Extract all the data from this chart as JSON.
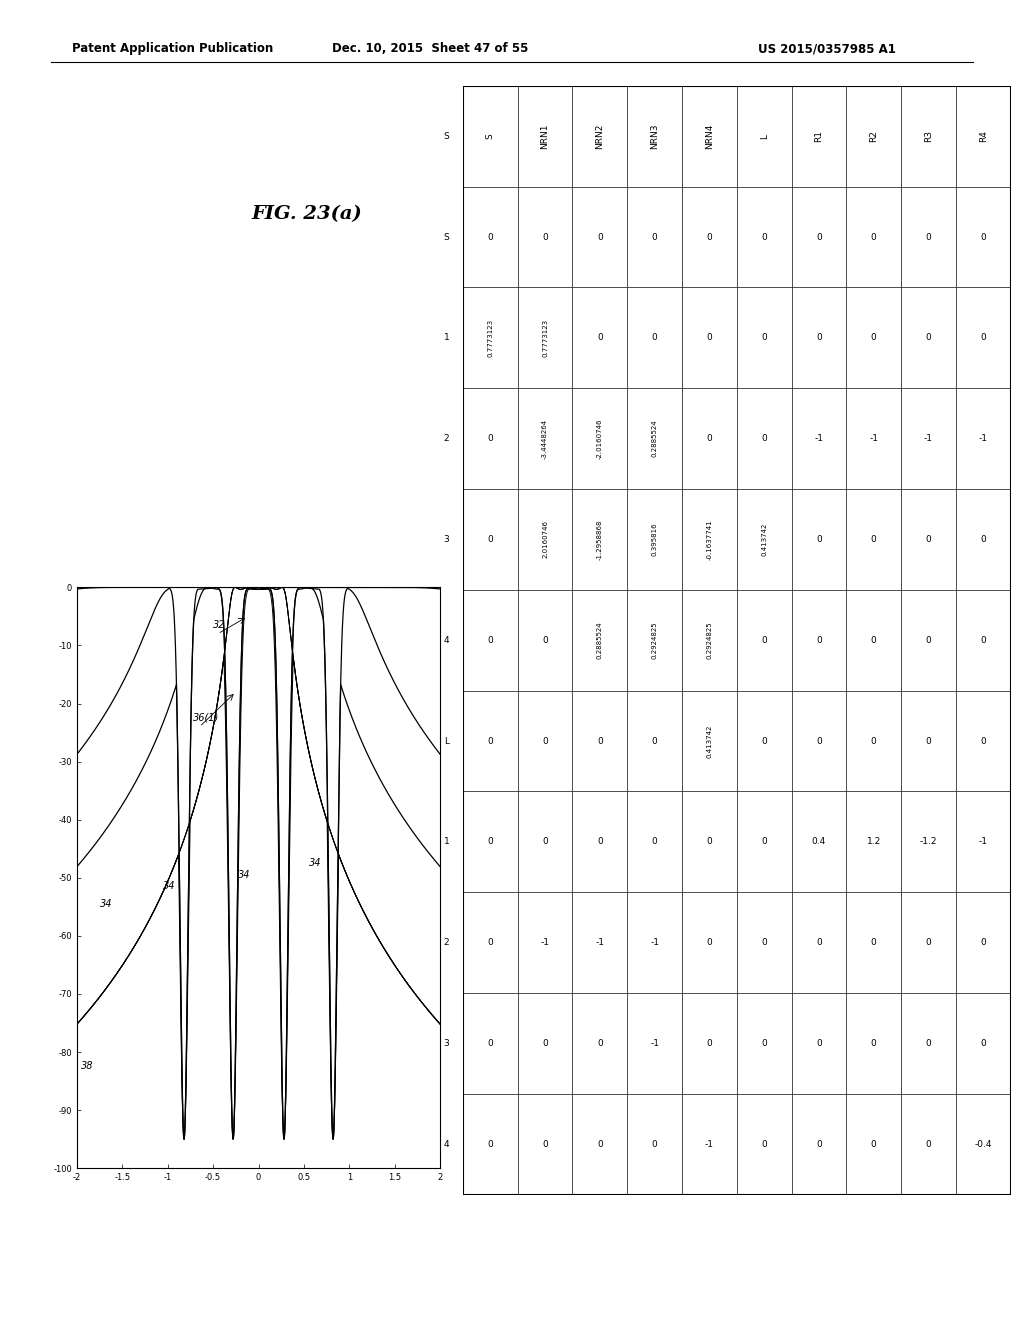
{
  "header_left": "Patent Application Publication",
  "header_center": "Dec. 10, 2015  Sheet 47 of 55",
  "header_right": "US 2015/0357985 A1",
  "fig_label": "FIG. 23(a)",
  "graph": {
    "xlim": [
      -2,
      2
    ],
    "ylim": [
      -100,
      0
    ],
    "xticks": [
      -2.0,
      -1.5,
      -1.0,
      -0.5,
      0.0,
      0.5,
      1.0,
      1.5,
      2.0
    ],
    "yticks": [
      0,
      -10,
      -20,
      -30,
      -40,
      -50,
      -60,
      -70,
      -80,
      -90,
      -100
    ]
  },
  "table_cols": [
    "S",
    "NRN1",
    "NRN2",
    "NRN3",
    "NRN4",
    "L",
    "R1",
    "R2",
    "R3",
    "R4"
  ],
  "table_rows": [
    "S",
    "1",
    "2",
    "3",
    "4",
    "L",
    "1",
    "2",
    "3",
    "4"
  ],
  "table_data": [
    [
      "0",
      "0",
      "0",
      "0",
      "0",
      "0",
      "0",
      "0",
      "0",
      "0"
    ],
    [
      "0.7773123",
      "0.7773123",
      "0",
      "0",
      "0",
      "0",
      "0",
      "0",
      "0",
      "0"
    ],
    [
      "0",
      "-3.4448264",
      "-2.0160746",
      "0.2885524",
      "0",
      "0",
      "-1",
      "-1",
      "-1",
      "-1"
    ],
    [
      "0",
      "2.0160746",
      "-1.2958868",
      "0.395816",
      "-0.1637741",
      "0.413742",
      "0",
      "0",
      "0",
      "0"
    ],
    [
      "0",
      "0",
      "0.2885524",
      "0.2924825",
      "0.2924825",
      "0",
      "0",
      "0",
      "0",
      "0"
    ],
    [
      "0",
      "0",
      "0",
      "0",
      "0.413742",
      "0",
      "0",
      "0",
      "0",
      "0"
    ],
    [
      "0",
      "0",
      "0",
      "0",
      "0",
      "0",
      "0.4",
      "1.2",
      "-1.2",
      "-1"
    ],
    [
      "0",
      "-1",
      "-1",
      "-1",
      "0",
      "0",
      "0",
      "0",
      "0",
      "0"
    ],
    [
      "0",
      "0",
      "0",
      "-1",
      "0",
      "0",
      "0",
      "0",
      "0",
      "0"
    ],
    [
      "0",
      "0",
      "0",
      "0",
      "-1",
      "0",
      "0",
      "0",
      "0",
      "-0.4"
    ]
  ]
}
